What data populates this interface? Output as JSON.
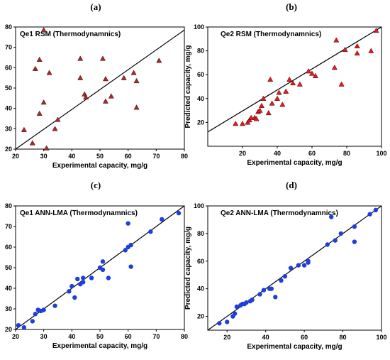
{
  "chart_data": [
    {
      "type": "scatter",
      "panel_label": "(a)",
      "title": "Qe1 RSM (Thermodynamnics)",
      "xlabel": "Experimental capacity, mg/g",
      "ylabel": "Predicted capacity, mg/g",
      "xlim": [
        20,
        80
      ],
      "ylim": [
        20,
        80
      ],
      "xticks": [
        20,
        30,
        40,
        50,
        60,
        70,
        80
      ],
      "yticks": [
        20,
        30,
        40,
        50,
        60,
        70,
        80
      ],
      "marker": "triangle",
      "marker_color": "#a52a2a",
      "fit_line": [
        [
          20,
          20
        ],
        [
          80,
          78.5
        ]
      ],
      "points": [
        [
          30,
          78.5
        ],
        [
          28.5,
          64
        ],
        [
          27,
          59.5
        ],
        [
          26,
          23
        ],
        [
          23,
          29.5
        ],
        [
          28.5,
          37.5
        ],
        [
          30,
          43
        ],
        [
          32,
          57.5
        ],
        [
          34,
          30
        ],
        [
          35,
          34.5
        ],
        [
          31,
          20.5
        ],
        [
          43,
          64.5
        ],
        [
          43,
          55
        ],
        [
          44.5,
          47
        ],
        [
          45,
          45.5
        ],
        [
          51,
          64.5
        ],
        [
          52,
          54.5
        ],
        [
          52,
          43.5
        ],
        [
          54,
          46
        ],
        [
          58.5,
          55
        ],
        [
          62,
          57.5
        ],
        [
          63,
          53.5
        ],
        [
          63,
          40.5
        ],
        [
          71,
          63.5
        ]
      ]
    },
    {
      "type": "scatter",
      "panel_label": "(b)",
      "title": "Qe2 RSM (Thermodynamnics)",
      "xlabel": "Experimental capacity, mg/g",
      "ylabel": "Predicted capacity, mg/g",
      "xlim": [
        0,
        100
      ],
      "ylim": [
        0,
        100
      ],
      "xticks": [
        20,
        40,
        60,
        80,
        100
      ],
      "yticks": [
        20,
        40,
        60,
        80,
        100
      ],
      "marker": "triangle",
      "marker_color": "#e41a1c",
      "fit_line": [
        [
          0,
          12
        ],
        [
          100,
          100
        ]
      ],
      "points": [
        [
          16,
          19
        ],
        [
          20,
          19
        ],
        [
          23,
          20
        ],
        [
          24,
          22
        ],
        [
          25,
          24
        ],
        [
          27,
          24
        ],
        [
          28,
          23
        ],
        [
          29,
          29
        ],
        [
          30,
          30
        ],
        [
          31,
          34
        ],
        [
          32,
          40
        ],
        [
          35,
          28
        ],
        [
          36,
          56
        ],
        [
          37,
          36
        ],
        [
          40,
          40
        ],
        [
          41,
          45
        ],
        [
          43,
          35
        ],
        [
          45,
          46
        ],
        [
          47,
          56
        ],
        [
          49,
          53
        ],
        [
          53,
          52
        ],
        [
          58,
          63
        ],
        [
          60,
          61
        ],
        [
          62,
          59
        ],
        [
          73,
          66
        ],
        [
          74,
          89
        ],
        [
          77,
          52
        ],
        [
          79,
          81
        ],
        [
          86,
          84
        ],
        [
          86,
          78
        ],
        [
          94,
          80
        ],
        [
          97,
          97
        ]
      ]
    },
    {
      "type": "scatter",
      "panel_label": "(c)",
      "title": "Qe1 ANN-LMA (Thermodynamnics)",
      "xlabel": "Experimental capacity, mg/g",
      "ylabel": "Predicted capacity, mg/g",
      "xlim": [
        20,
        80
      ],
      "ylim": [
        20,
        80
      ],
      "xticks": [
        20,
        30,
        40,
        50,
        60,
        70,
        80
      ],
      "yticks": [
        20,
        30,
        40,
        50,
        60,
        70,
        80
      ],
      "marker": "circle",
      "marker_color": "#1f3fdc",
      "fit_line": [
        [
          20,
          20
        ],
        [
          80,
          80
        ]
      ],
      "points": [
        [
          21,
          22
        ],
        [
          23,
          21
        ],
        [
          26,
          24
        ],
        [
          27,
          27.5
        ],
        [
          28,
          29.5
        ],
        [
          29,
          29
        ],
        [
          30,
          29.5
        ],
        [
          34,
          31.5
        ],
        [
          39,
          38.5
        ],
        [
          40,
          41
        ],
        [
          41,
          35.5
        ],
        [
          42,
          44.5
        ],
        [
          43,
          42
        ],
        [
          44,
          45
        ],
        [
          44,
          43
        ],
        [
          47,
          45
        ],
        [
          50,
          50
        ],
        [
          51,
          49
        ],
        [
          51,
          53
        ],
        [
          53,
          45
        ],
        [
          59,
          58.5
        ],
        [
          60,
          60
        ],
        [
          60,
          71.5
        ],
        [
          61,
          61
        ],
        [
          61,
          50.5
        ],
        [
          68,
          67.5
        ],
        [
          72,
          73.5
        ],
        [
          78,
          76.5
        ]
      ]
    },
    {
      "type": "scatter",
      "panel_label": "(d)",
      "title": "Qe2 ANN-LMA (Thermodynamnics)",
      "xlabel": "Experimental capacity, mg/g",
      "ylabel": "Predicted capacity, mg/g",
      "xlim": [
        10,
        100
      ],
      "ylim": [
        10,
        100
      ],
      "xticks": [
        20,
        40,
        60,
        80,
        100
      ],
      "yticks": [
        20,
        40,
        60,
        80,
        100
      ],
      "marker": "circle",
      "marker_color": "#1f3fdc",
      "fit_line": [
        [
          10,
          10
        ],
        [
          100,
          100
        ]
      ],
      "points": [
        [
          16,
          15
        ],
        [
          20,
          16
        ],
        [
          23,
          20
        ],
        [
          24,
          22
        ],
        [
          25,
          27
        ],
        [
          27,
          28
        ],
        [
          28,
          29
        ],
        [
          29,
          29
        ],
        [
          30,
          30
        ],
        [
          32,
          31
        ],
        [
          33,
          32
        ],
        [
          37,
          36
        ],
        [
          39,
          39
        ],
        [
          42,
          40
        ],
        [
          43,
          40
        ],
        [
          45,
          34
        ],
        [
          48,
          46
        ],
        [
          50,
          49
        ],
        [
          53,
          55
        ],
        [
          57,
          57
        ],
        [
          60,
          57
        ],
        [
          62,
          60
        ],
        [
          62,
          59
        ],
        [
          72,
          72
        ],
        [
          74,
          92
        ],
        [
          76,
          75
        ],
        [
          79,
          80
        ],
        [
          86,
          85
        ],
        [
          86,
          74
        ],
        [
          94,
          94
        ],
        [
          97,
          97
        ]
      ]
    }
  ]
}
